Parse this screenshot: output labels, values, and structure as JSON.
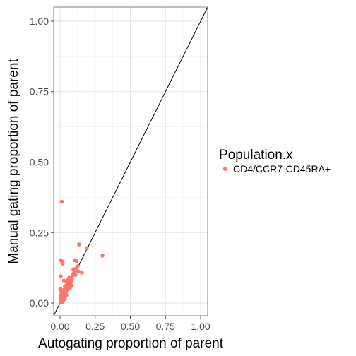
{
  "chart_data": {
    "type": "scatter",
    "xlabel": "Autogating proportion of parent",
    "ylabel": "Manual gating proportion of parent",
    "xlim": [
      -0.045,
      1.05
    ],
    "ylim": [
      -0.045,
      1.05
    ],
    "x_ticks": [
      "0.00",
      "0.25",
      "0.50",
      "0.75",
      "1.00"
    ],
    "y_ticks": [
      "0.00",
      "0.25",
      "0.50",
      "0.75",
      "1.00"
    ],
    "x_tick_values": [
      0,
      0.25,
      0.5,
      0.75,
      1.0
    ],
    "y_tick_values": [
      0,
      0.25,
      0.5,
      0.75,
      1.0
    ],
    "grid": true,
    "reference_line": "y = x",
    "legend": {
      "title": "Population.x",
      "position": "right",
      "entries": [
        "CD4/CCR7-CD45RA+"
      ]
    },
    "series": [
      {
        "name": "CD4/CCR7-CD45RA+",
        "color": "#F8766D",
        "points": [
          [
            0.012,
            0.36
          ],
          [
            0.302,
            0.168
          ],
          [
            0.135,
            0.208
          ],
          [
            0.19,
            0.195
          ],
          [
            0.155,
            0.108
          ],
          [
            0.005,
            0.152
          ],
          [
            0.015,
            0.147
          ],
          [
            0.02,
            0.14
          ],
          [
            0.004,
            0.095
          ],
          [
            0.028,
            0.08
          ],
          [
            0.105,
            0.152
          ],
          [
            0.118,
            0.148
          ],
          [
            0.125,
            0.13
          ],
          [
            0.115,
            0.122
          ],
          [
            0.095,
            0.12
          ],
          [
            0.1,
            0.108
          ],
          [
            0.09,
            0.1
          ],
          [
            0.085,
            0.088
          ],
          [
            0.065,
            0.078
          ],
          [
            0.058,
            0.072
          ],
          [
            0.05,
            0.065
          ],
          [
            0.045,
            0.058
          ],
          [
            0.052,
            0.045
          ],
          [
            0.04,
            0.05
          ],
          [
            0.035,
            0.06
          ],
          [
            0.03,
            0.048
          ],
          [
            0.025,
            0.04
          ],
          [
            0.02,
            0.035
          ],
          [
            0.015,
            0.03
          ],
          [
            0.012,
            0.022
          ],
          [
            0.008,
            0.018
          ],
          [
            0.006,
            0.012
          ],
          [
            0.004,
            0.008
          ],
          [
            0.003,
            0.004
          ],
          [
            0.01,
            0.005
          ],
          [
            0.018,
            0.012
          ],
          [
            0.025,
            0.02
          ],
          [
            0.032,
            0.028
          ],
          [
            0.04,
            0.035
          ],
          [
            0.06,
            0.055
          ],
          [
            0.07,
            0.052
          ],
          [
            0.075,
            0.065
          ],
          [
            0.08,
            0.078
          ],
          [
            0.078,
            0.06
          ],
          [
            0.045,
            0.028
          ],
          [
            0.035,
            0.015
          ],
          [
            0.028,
            0.012
          ],
          [
            0.022,
            0.008
          ],
          [
            0.015,
            0.002
          ],
          [
            0.002,
            0.05
          ],
          [
            0.006,
            0.042
          ],
          [
            0.01,
            0.03
          ],
          [
            0.005,
            0.025
          ],
          [
            0.002,
            0.015
          ],
          [
            0.065,
            0.09
          ],
          [
            0.055,
            0.082
          ],
          [
            0.048,
            0.075
          ],
          [
            0.085,
            0.062
          ],
          [
            0.11,
            0.1
          ],
          [
            0.13,
            0.112
          ]
        ]
      }
    ]
  }
}
